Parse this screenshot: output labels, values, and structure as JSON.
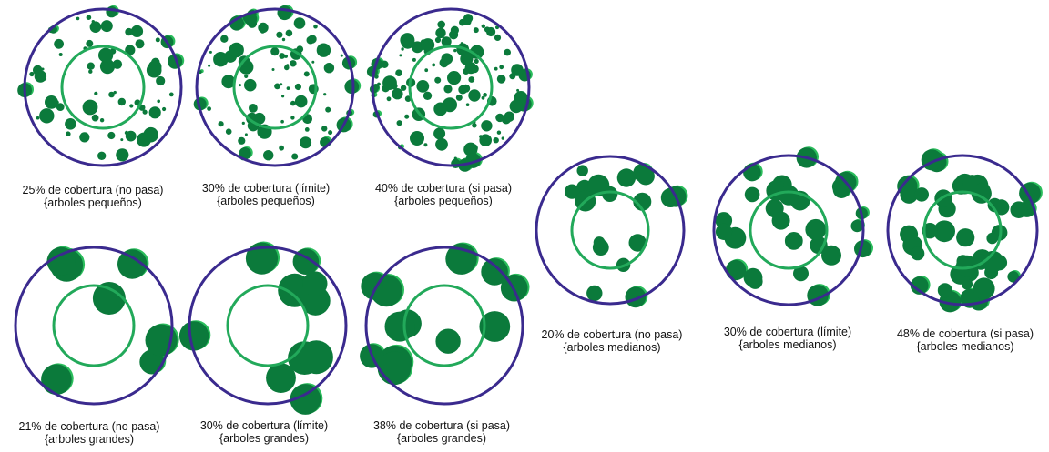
{
  "colors": {
    "plot_ring": "#3a2a8e",
    "inner_ring": "#22a95a",
    "tree_dark": "#0b7a3b",
    "tree_edge": "#2bbd5c",
    "caption_text": "#111111"
  },
  "panels": [
    {
      "id": "small-25",
      "coverage_pct": 25,
      "tree_size": "small",
      "caption_line1": "25% de cobertura (no pasa)",
      "caption_line2": "{arboles pequeños)"
    },
    {
      "id": "small-30",
      "coverage_pct": 30,
      "tree_size": "small",
      "caption_line1": "30% de cobertura (límite)",
      "caption_line2": "{arboles pequeños)"
    },
    {
      "id": "small-40",
      "coverage_pct": 40,
      "tree_size": "small",
      "caption_line1": "40% de cobertura (si pasa)",
      "caption_line2": "{arboles pequeños)"
    },
    {
      "id": "large-21",
      "coverage_pct": 21,
      "tree_size": "large",
      "caption_line1": "21% de cobertura (no pasa)",
      "caption_line2": "{arboles grandes)"
    },
    {
      "id": "large-30",
      "coverage_pct": 30,
      "tree_size": "large",
      "caption_line1": "30% de cobertura (límite)",
      "caption_line2": "{arboles grandes)"
    },
    {
      "id": "large-38",
      "coverage_pct": 38,
      "tree_size": "large",
      "caption_line1": "38% de cobertura (si pasa)",
      "caption_line2": "{arboles grandes)"
    },
    {
      "id": "medium-20",
      "coverage_pct": 20,
      "tree_size": "medium",
      "caption_line1": "20% de cobertura (no pasa)",
      "caption_line2": "{arboles medianos)"
    },
    {
      "id": "medium-30",
      "coverage_pct": 30,
      "tree_size": "medium",
      "caption_line1": "30% de cobertura (límite)",
      "caption_line2": "{arboles medianos)"
    },
    {
      "id": "medium-48",
      "coverage_pct": 48,
      "tree_size": "medium",
      "caption_line1": "48% de cobertura (si pasa)",
      "caption_line2": "{arboles medianos)"
    }
  ]
}
